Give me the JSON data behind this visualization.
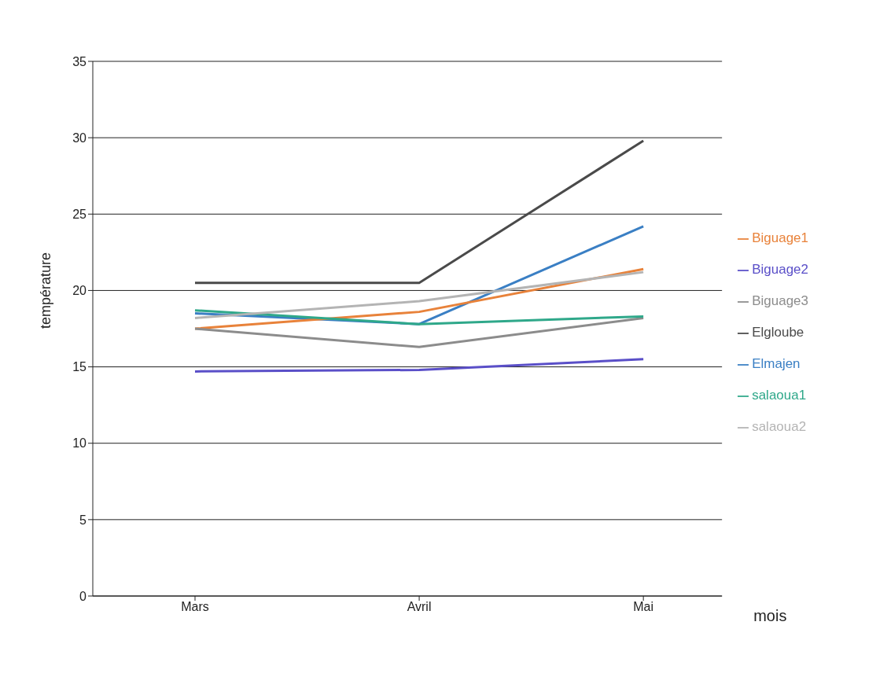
{
  "chart_data": {
    "type": "line",
    "xlabel": "mois",
    "ylabel": "température",
    "categories": [
      "Mars",
      "Avril",
      "Mai"
    ],
    "series": [
      {
        "name": "Elmajen",
        "color": "#3a7fc4",
        "values": [
          18.5,
          17.8,
          24.2
        ]
      },
      {
        "name": "Elgloube",
        "color": "#4a4a4a",
        "values": [
          20.5,
          20.5,
          29.8
        ]
      },
      {
        "name": "Biguage1",
        "color": "#e8823a",
        "values": [
          17.5,
          18.6,
          21.4
        ]
      },
      {
        "name": "Biguage2",
        "color": "#5a4fc8",
        "values": [
          14.7,
          14.8,
          15.5
        ]
      },
      {
        "name": "Biguage3",
        "color": "#8c8c8c",
        "values": [
          17.5,
          16.3,
          18.2
        ]
      },
      {
        "name": "salaoua1",
        "color": "#2fa88a",
        "values": [
          18.7,
          17.8,
          18.3
        ]
      },
      {
        "name": "salaoua2",
        "color": "#b4b4b4",
        "values": [
          18.2,
          19.3,
          21.2
        ]
      }
    ],
    "ylim": [
      0,
      35
    ],
    "yticks": [
      0,
      5,
      10,
      15,
      20,
      25,
      30,
      35
    ],
    "grid": "y",
    "legend": "right",
    "marker": "none",
    "line_style": "solid"
  }
}
